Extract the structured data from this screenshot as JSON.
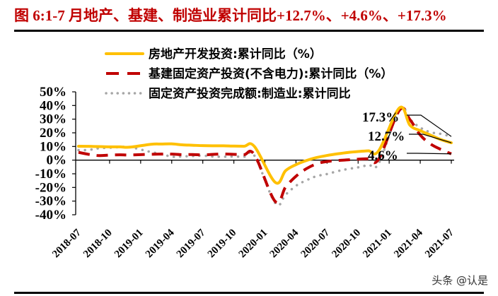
{
  "title": "图  6:1-7 月地产、基建、制造业累计同比+12.7%、+4.6%、+17.3%",
  "watermark": "头条 @认是",
  "colors": {
    "title": "#c00000",
    "real_estate": "#ffc000",
    "infrastructure": "#c00000",
    "manufacturing": "#a6a6a6"
  },
  "legend": [
    {
      "label": "房地产开发投资:累计同比（%）",
      "style": "solid",
      "color": "#ffc000"
    },
    {
      "label": "基建固定资产投资(不含电力):累计同比（%）",
      "style": "dashed",
      "color": "#c00000"
    },
    {
      "label": "固定资产投资完成额:制造业:累计同比",
      "style": "dotted",
      "color": "#a6a6a6"
    }
  ],
  "annotations": [
    "17.3%",
    "12.7%",
    "4.6%"
  ],
  "chart_data": {
    "type": "line",
    "title": "图 6:1-7 月地产、基建、制造业累计同比+12.7%、+4.6%、+17.3%",
    "xlabel": "",
    "ylabel": "",
    "ylim": [
      -40,
      50
    ],
    "yticks": [
      "50%",
      "40%",
      "30%",
      "20%",
      "10%",
      "0%",
      "-10%",
      "-20%",
      "-30%",
      "-40%"
    ],
    "grid": false,
    "legend_position": "top",
    "x_tick_labels": [
      "2018-07",
      "2018-10",
      "2019-01",
      "2019-04",
      "2019-07",
      "2019-10",
      "2020-01",
      "2020-04",
      "2020-07",
      "2020-10",
      "2021-01",
      "2021-04",
      "2021-07"
    ],
    "x": [
      "2018-07",
      "2018-08",
      "2018-09",
      "2018-10",
      "2018-11",
      "2018-12",
      "2019-02",
      "2019-03",
      "2019-04",
      "2019-05",
      "2019-06",
      "2019-07",
      "2019-08",
      "2019-09",
      "2019-10",
      "2019-11",
      "2019-12",
      "2020-02",
      "2020-03",
      "2020-04",
      "2020-05",
      "2020-06",
      "2020-07",
      "2020-08",
      "2020-09",
      "2020-10",
      "2020-11",
      "2020-12",
      "2021-02",
      "2021-03",
      "2021-04",
      "2021-05",
      "2021-06",
      "2021-07"
    ],
    "series": [
      {
        "name": "房地产开发投资:累计同比（%）",
        "values": [
          10.2,
          10.1,
          9.9,
          9.7,
          9.7,
          9.5,
          11.6,
          11.8,
          11.9,
          11.2,
          10.9,
          10.6,
          10.5,
          10.5,
          10.3,
          10.2,
          9.9,
          -16.3,
          -7.7,
          -3.3,
          -0.3,
          1.9,
          3.4,
          4.6,
          5.6,
          6.3,
          6.8,
          7.0,
          38.3,
          25.6,
          21.6,
          18.3,
          15.0,
          12.7
        ]
      },
      {
        "name": "基建固定资产投资(不含电力):累计同比（%）",
        "values": [
          5.7,
          4.2,
          3.3,
          3.7,
          3.9,
          3.8,
          4.3,
          4.4,
          4.4,
          4.0,
          4.1,
          3.8,
          4.2,
          4.5,
          4.2,
          4.0,
          3.8,
          -30.3,
          -19.7,
          -11.8,
          -6.3,
          -2.7,
          -1.0,
          -0.3,
          0.2,
          0.7,
          1.0,
          0.9,
          36.6,
          29.7,
          18.4,
          11.8,
          7.8,
          4.6
        ]
      },
      {
        "name": "固定资产投资完成额:制造业:累计同比",
        "values": [
          7.3,
          7.5,
          8.7,
          9.1,
          9.5,
          9.5,
          5.9,
          4.6,
          2.5,
          2.7,
          3.0,
          3.3,
          2.6,
          2.5,
          2.6,
          2.5,
          3.1,
          -31.5,
          -25.2,
          -18.8,
          -14.8,
          -11.7,
          -10.2,
          -8.1,
          -6.5,
          -5.3,
          -3.5,
          -2.2,
          37.3,
          29.8,
          23.8,
          20.4,
          19.2,
          17.3
        ]
      }
    ],
    "annotations": [
      {
        "text": "17.3%",
        "series": "制造业"
      },
      {
        "text": "12.7%",
        "series": "房地产"
      },
      {
        "text": "4.6%",
        "series": "基建"
      }
    ]
  }
}
